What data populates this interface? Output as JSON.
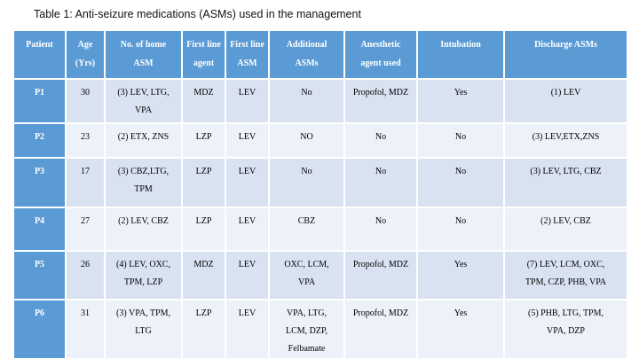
{
  "title": "Table 1: Anti-seizure medications (ASMs) used in the management",
  "colors": {
    "header_blue": "#5B9BD5",
    "row_band_dark": "#D9E2F1",
    "row_band_light": "#EDF1F9",
    "header_text": "#FFFFFF",
    "body_text": "#000000",
    "grid_border": "#FFFFFF"
  },
  "table": {
    "headers": [
      "Patient",
      "Age\n(Yrs)",
      "No. of home\nASM",
      "First line\nagent",
      "First line\nASM",
      "Additional\nASMs",
      "Anesthetic\nagent used",
      "Intubation",
      "Discharge ASMs"
    ],
    "rows": [
      {
        "patient": "P1",
        "cells": [
          "30",
          "(3) LEV, LTG,\nVPA",
          "MDZ",
          "LEV",
          "No",
          "Propofol, MDZ",
          "Yes",
          "(1) LEV"
        ]
      },
      {
        "patient": "P2",
        "cells": [
          "23",
          "(2) ETX, ZNS",
          "LZP",
          "LEV",
          "NO",
          "No",
          "No",
          "(3) LEV,ETX,ZNS"
        ]
      },
      {
        "patient": "P3",
        "cells": [
          "17",
          "(3) CBZ,LTG,\nTPM",
          "LZP",
          "LEV",
          "No",
          "No",
          "No",
          "(3) LEV, LTG, CBZ"
        ]
      },
      {
        "patient": "P4",
        "cells": [
          "27",
          "(2) LEV, CBZ",
          "LZP",
          "LEV",
          "CBZ",
          "No",
          "No",
          "(2) LEV, CBZ"
        ]
      },
      {
        "patient": "P5",
        "cells": [
          "26",
          "(4) LEV, OXC,\nTPM, LZP",
          "MDZ",
          "LEV",
          "OXC, LCM,\nVPA",
          "Propofol, MDZ",
          "Yes",
          "(7) LEV, LCM, OXC,\nTPM, CZP, PHB, VPA"
        ]
      },
      {
        "patient": "P6",
        "cells": [
          "31",
          "(3) VPA, TPM,\nLTG",
          "LZP",
          "LEV",
          "VPA, LTG,\nLCM, DZP,\nFelbamate",
          "Propofol, MDZ",
          "Yes",
          "(5) PHB, LTG, TPM,\nVPA, DZP"
        ]
      }
    ]
  }
}
